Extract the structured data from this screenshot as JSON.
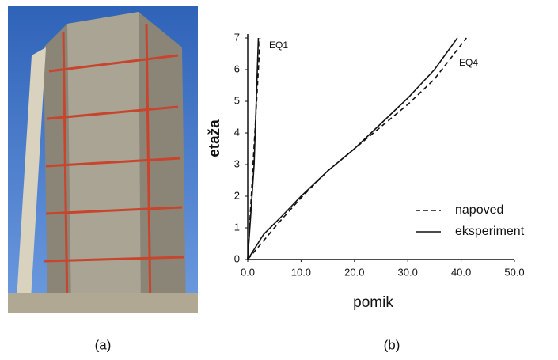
{
  "captions": [
    "(a)",
    "(b)"
  ],
  "chart_data": {
    "type": "line",
    "x_label": "pomik",
    "y_label": "etaža",
    "xlim": [
      0,
      50
    ],
    "xticks": [
      {
        "value": 0,
        "label": "0.0"
      },
      {
        "value": 10,
        "label": "10.0"
      },
      {
        "value": 20,
        "label": "20.0"
      },
      {
        "value": 30,
        "label": "30.0"
      },
      {
        "value": 40,
        "label": "40.0"
      },
      {
        "value": 50,
        "label": "50.0"
      }
    ],
    "ylim": [
      0,
      7
    ],
    "yticks": [
      0,
      1,
      2,
      3,
      4,
      5,
      6,
      7
    ],
    "annotations": [
      "EQ1",
      "EQ4"
    ],
    "series": [
      {
        "name": "napoved",
        "color": "#111111",
        "dashed": true,
        "curves": [
          {
            "x": [
              0,
              0.5,
              1.0,
              1.5,
              2.0,
              2.3
            ],
            "values": [
              0,
              1.5,
              3,
              4.5,
              6,
              7
            ]
          },
          {
            "x": [
              0,
              3,
              6,
              10,
              15,
              20,
              25,
              30,
              35,
              41
            ],
            "values": [
              0,
              0.6,
              1.2,
              1.95,
              2.8,
              3.5,
              4.2,
              4.9,
              5.7,
              7
            ]
          }
        ]
      },
      {
        "name": "eksperiment",
        "color": "#111111",
        "dashed": false,
        "curves": [
          {
            "x": [
              0,
              0.4,
              0.8,
              1.2,
              1.6,
              2.0
            ],
            "values": [
              0,
              1,
              2,
              3,
              5,
              7
            ]
          },
          {
            "x": [
              0,
              3,
              6,
              10,
              15,
              20,
              25,
              30,
              35,
              39.3
            ],
            "values": [
              0,
              0.8,
              1.3,
              2.0,
              2.8,
              3.5,
              4.3,
              5.1,
              6.0,
              7
            ]
          }
        ]
      }
    ]
  }
}
